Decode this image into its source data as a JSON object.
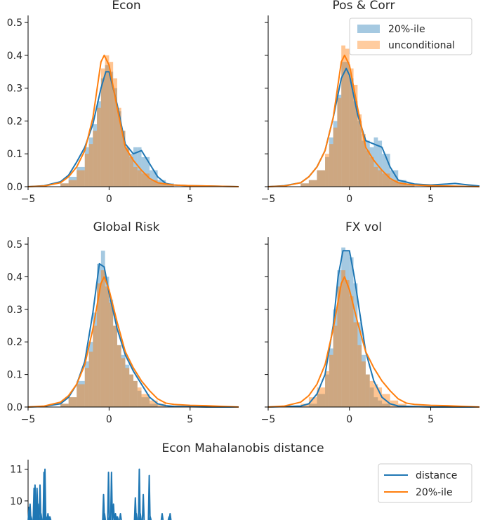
{
  "chart_data": [
    {
      "type": "histogram",
      "title": "Econ",
      "xlim": [
        -5,
        8
      ],
      "ylim": [
        0,
        0.5
      ],
      "xticks": [
        -5,
        0,
        5
      ],
      "yticks": [
        "0.0",
        "0.1",
        "0.2",
        "0.3",
        "0.4",
        "0.5"
      ],
      "legend": null,
      "series": [
        {
          "name": "20%-ile",
          "color": "#1f77b4",
          "hist": {
            "bin_edges": [
              -3.0,
              -2.5,
              -2.0,
              -1.5,
              -1.25,
              -1.0,
              -0.75,
              -0.5,
              -0.25,
              0,
              0.25,
              0.5,
              0.75,
              1.0,
              1.25,
              1.5,
              1.75,
              2.0,
              2.5,
              3.0,
              3.5,
              4.0
            ],
            "heights": [
              0.01,
              0.03,
              0.06,
              0.12,
              0.15,
              0.19,
              0.26,
              0.33,
              0.37,
              0.35,
              0.3,
              0.23,
              0.17,
              0.12,
              0.1,
              0.12,
              0.12,
              0.09,
              0.05,
              0.02,
              0.01
            ]
          },
          "kde_x": [
            -5,
            -4,
            -3,
            -2.5,
            -2,
            -1.5,
            -1,
            -0.5,
            -0.2,
            0,
            0.5,
            1,
            1.5,
            2,
            2.5,
            3,
            3.5,
            4,
            5,
            6,
            7,
            8
          ],
          "kde_y": [
            0,
            0.003,
            0.015,
            0.035,
            0.075,
            0.12,
            0.19,
            0.3,
            0.35,
            0.35,
            0.25,
            0.13,
            0.1,
            0.11,
            0.07,
            0.03,
            0.01,
            0.005,
            0.003,
            0.002,
            0.001,
            0
          ]
        },
        {
          "name": "unconditional",
          "color": "#ff7f0e",
          "hist": {
            "bin_edges": [
              -3.0,
              -2.5,
              -2.0,
              -1.5,
              -1.25,
              -1.0,
              -0.75,
              -0.5,
              -0.25,
              0,
              0.25,
              0.5,
              0.75,
              1.0,
              1.25,
              1.5,
              1.75,
              2.0,
              2.5,
              3.0,
              3.5,
              4.0
            ],
            "heights": [
              0.01,
              0.02,
              0.05,
              0.1,
              0.13,
              0.17,
              0.24,
              0.36,
              0.4,
              0.38,
              0.33,
              0.24,
              0.17,
              0.12,
              0.09,
              0.06,
              0.05,
              0.04,
              0.02,
              0.01,
              0.005
            ]
          },
          "kde_x": [
            -5,
            -4,
            -3,
            -2.5,
            -2,
            -1.5,
            -1,
            -0.5,
            -0.3,
            0,
            0.5,
            1,
            1.5,
            2,
            2.5,
            3,
            3.5,
            4,
            5,
            6,
            7,
            8
          ],
          "kde_y": [
            0,
            0.002,
            0.012,
            0.03,
            0.06,
            0.11,
            0.21,
            0.38,
            0.4,
            0.37,
            0.24,
            0.12,
            0.08,
            0.05,
            0.025,
            0.012,
            0.008,
            0.005,
            0.003,
            0.002,
            0.001,
            0
          ]
        }
      ]
    },
    {
      "type": "histogram",
      "title": "Pos & Corr",
      "xlim": [
        -5,
        8
      ],
      "ylim": [
        0,
        0.5
      ],
      "xticks": [
        -5,
        0,
        5
      ],
      "legend": {
        "placement": "top-right",
        "entries": [
          "20%-ile",
          "unconditional"
        ]
      },
      "series": [
        {
          "name": "20%-ile",
          "color": "#1f77b4",
          "hist": {
            "bin_edges": [
              -3.0,
              -2.5,
              -2.0,
              -1.5,
              -1.25,
              -1.0,
              -0.75,
              -0.5,
              -0.25,
              0,
              0.25,
              0.5,
              0.75,
              1.0,
              1.25,
              1.5,
              1.75,
              2.0,
              2.5,
              3.0,
              3.5,
              4.0
            ],
            "heights": [
              0.01,
              0.02,
              0.05,
              0.09,
              0.15,
              0.2,
              0.28,
              0.38,
              0.38,
              0.33,
              0.26,
              0.2,
              0.14,
              0.14,
              0.12,
              0.15,
              0.14,
              0.1,
              0.05,
              0.02,
              0.01
            ]
          },
          "kde_x": [
            -5,
            -4,
            -3,
            -2.5,
            -2,
            -1.5,
            -1,
            -0.5,
            -0.2,
            0,
            0.5,
            1,
            1.5,
            2,
            2.5,
            3,
            4,
            5,
            6,
            6.5,
            7,
            8
          ],
          "kde_y": [
            0,
            0.003,
            0.012,
            0.03,
            0.06,
            0.11,
            0.21,
            0.33,
            0.36,
            0.34,
            0.22,
            0.14,
            0.13,
            0.12,
            0.06,
            0.02,
            0.008,
            0.005,
            0.008,
            0.01,
            0.007,
            0.002
          ]
        },
        {
          "name": "unconditional",
          "color": "#ff7f0e",
          "hist": {
            "bin_edges": [
              -3.0,
              -2.5,
              -2.0,
              -1.5,
              -1.25,
              -1.0,
              -0.75,
              -0.5,
              -0.25,
              0,
              0.25,
              0.5,
              0.75,
              1.0,
              1.25,
              1.5,
              1.75,
              2.0,
              2.5,
              3.0,
              3.5,
              4.0
            ],
            "heights": [
              0.01,
              0.02,
              0.05,
              0.1,
              0.13,
              0.18,
              0.27,
              0.43,
              0.42,
              0.36,
              0.31,
              0.22,
              0.16,
              0.11,
              0.09,
              0.06,
              0.05,
              0.04,
              0.02,
              0.01,
              0.005
            ]
          },
          "kde_x": [
            -5,
            -4,
            -3,
            -2.5,
            -2,
            -1.5,
            -1,
            -0.5,
            -0.3,
            0,
            0.5,
            1,
            1.5,
            2,
            2.5,
            3,
            3.5,
            4,
            5,
            6,
            7,
            8
          ],
          "kde_y": [
            0,
            0.002,
            0.012,
            0.03,
            0.06,
            0.11,
            0.21,
            0.38,
            0.4,
            0.37,
            0.24,
            0.12,
            0.08,
            0.05,
            0.025,
            0.012,
            0.008,
            0.005,
            0.003,
            0.002,
            0.001,
            0
          ]
        }
      ]
    },
    {
      "type": "histogram",
      "title": "Global Risk",
      "xlim": [
        -5,
        8
      ],
      "ylim": [
        0,
        0.5
      ],
      "xticks": [
        -5,
        0,
        5
      ],
      "yticks": [
        "0.0",
        "0.1",
        "0.2",
        "0.3",
        "0.4",
        "0.5"
      ],
      "legend": null,
      "series": [
        {
          "name": "20%-ile",
          "color": "#1f77b4",
          "hist": {
            "bin_edges": [
              -3.0,
              -2.5,
              -2.0,
              -1.5,
              -1.25,
              -1.0,
              -0.75,
              -0.5,
              -0.25,
              0,
              0.25,
              0.5,
              0.75,
              1.0,
              1.25,
              1.5,
              1.75,
              2.0,
              2.5,
              3.0
            ],
            "heights": [
              0.01,
              0.03,
              0.08,
              0.14,
              0.2,
              0.29,
              0.44,
              0.48,
              0.4,
              0.33,
              0.25,
              0.19,
              0.16,
              0.13,
              0.1,
              0.08,
              0.05,
              0.03,
              0.01
            ]
          },
          "kde_x": [
            -5,
            -4,
            -3,
            -2.5,
            -2,
            -1.5,
            -1,
            -0.6,
            -0.3,
            0,
            0.5,
            1,
            1.5,
            2,
            2.5,
            3,
            3.5,
            4,
            5,
            6,
            7,
            8
          ],
          "kde_y": [
            0,
            0.002,
            0.01,
            0.03,
            0.07,
            0.14,
            0.29,
            0.44,
            0.43,
            0.35,
            0.24,
            0.16,
            0.11,
            0.07,
            0.03,
            0.01,
            0.004,
            0.002,
            0.001,
            0,
            0,
            0
          ]
        },
        {
          "name": "unconditional",
          "color": "#ff7f0e",
          "hist": {
            "bin_edges": [
              -3.0,
              -2.5,
              -2.0,
              -1.5,
              -1.25,
              -1.0,
              -0.75,
              -0.5,
              -0.25,
              0,
              0.25,
              0.5,
              0.75,
              1.0,
              1.25,
              1.5,
              1.75,
              2.0,
              2.5,
              3.0,
              3.5
            ],
            "heights": [
              0.01,
              0.03,
              0.07,
              0.12,
              0.17,
              0.25,
              0.38,
              0.42,
              0.37,
              0.32,
              0.25,
              0.19,
              0.15,
              0.12,
              0.1,
              0.08,
              0.06,
              0.04,
              0.02,
              0.01
            ]
          },
          "kde_x": [
            -5,
            -4,
            -3,
            -2.5,
            -2,
            -1.5,
            -1,
            -0.5,
            -0.3,
            0,
            0.5,
            1,
            1.5,
            2,
            2.5,
            3,
            3.5,
            4,
            5,
            6,
            7,
            8
          ],
          "kde_y": [
            0,
            0.003,
            0.015,
            0.035,
            0.07,
            0.13,
            0.24,
            0.38,
            0.4,
            0.36,
            0.26,
            0.17,
            0.12,
            0.08,
            0.05,
            0.025,
            0.012,
            0.008,
            0.005,
            0.004,
            0.002,
            0
          ]
        }
      ]
    },
    {
      "type": "histogram",
      "title": "FX vol",
      "xlim": [
        -5,
        8
      ],
      "ylim": [
        0,
        0.5
      ],
      "xticks": [
        -5,
        0,
        5
      ],
      "legend": null,
      "series": [
        {
          "name": "20%-ile",
          "color": "#1f77b4",
          "hist": {
            "bin_edges": [
              -2.5,
              -2.0,
              -1.5,
              -1.25,
              -1.0,
              -0.75,
              -0.5,
              -0.25,
              0,
              0.25,
              0.5,
              0.75,
              1.0,
              1.25,
              1.5,
              1.75,
              2.0,
              2.5
            ],
            "heights": [
              0.01,
              0.04,
              0.1,
              0.18,
              0.3,
              0.42,
              0.49,
              0.48,
              0.46,
              0.38,
              0.26,
              0.16,
              0.1,
              0.06,
              0.03,
              0.02,
              0.01
            ]
          },
          "kde_x": [
            -5,
            -3,
            -2.5,
            -2,
            -1.5,
            -1,
            -0.7,
            -0.4,
            0,
            0.3,
            0.6,
            1,
            1.5,
            2,
            2.5,
            3,
            5,
            8
          ],
          "kde_y": [
            0,
            0.003,
            0.01,
            0.04,
            0.1,
            0.25,
            0.4,
            0.48,
            0.48,
            0.4,
            0.3,
            0.17,
            0.08,
            0.03,
            0.01,
            0.003,
            0,
            0
          ]
        },
        {
          "name": "unconditional",
          "color": "#ff7f0e",
          "hist": {
            "bin_edges": [
              -3.0,
              -2.5,
              -2.0,
              -1.5,
              -1.25,
              -1.0,
              -0.75,
              -0.5,
              -0.25,
              0,
              0.25,
              0.5,
              0.75,
              1.0,
              1.25,
              1.5,
              1.75,
              2.0,
              2.5,
              3.0,
              3.5
            ],
            "heights": [
              0.01,
              0.03,
              0.06,
              0.11,
              0.16,
              0.25,
              0.37,
              0.42,
              0.39,
              0.34,
              0.26,
              0.19,
              0.14,
              0.1,
              0.08,
              0.07,
              0.06,
              0.04,
              0.02,
              0.01
            ]
          },
          "kde_x": [
            -5,
            -4,
            -3,
            -2.5,
            -2,
            -1.5,
            -1,
            -0.5,
            -0.3,
            0,
            0.5,
            1,
            1.5,
            2,
            2.5,
            3,
            3.5,
            4,
            5,
            6,
            7,
            8
          ],
          "kde_y": [
            0,
            0.003,
            0.015,
            0.035,
            0.07,
            0.13,
            0.24,
            0.38,
            0.4,
            0.36,
            0.26,
            0.17,
            0.12,
            0.08,
            0.05,
            0.025,
            0.012,
            0.008,
            0.005,
            0.004,
            0.002,
            0
          ]
        }
      ]
    },
    {
      "type": "line",
      "title": "Econ Mahalanobis distance",
      "yticks": [
        "11",
        "10"
      ],
      "ylim_visible": [
        9.4,
        11.3
      ],
      "x_range": [
        0,
        100
      ],
      "legend": {
        "placement": "top-right",
        "entries": [
          "distance",
          "20%-ile"
        ]
      },
      "series": [
        {
          "name": "distance",
          "color": "#1f77b4",
          "spikes": [
            {
              "x": 1,
              "y": 9.8
            },
            {
              "x": 2,
              "y": 9.9
            },
            {
              "x": 3,
              "y": 9.5
            },
            {
              "x": 6,
              "y": 10.4
            },
            {
              "x": 7,
              "y": 10.5
            },
            {
              "x": 8,
              "y": 9.7
            },
            {
              "x": 9,
              "y": 10.4
            },
            {
              "x": 10,
              "y": 9.9
            },
            {
              "x": 12,
              "y": 10.5
            },
            {
              "x": 13,
              "y": 9.6
            },
            {
              "x": 16,
              "y": 10.9
            },
            {
              "x": 17,
              "y": 11.0
            },
            {
              "x": 18,
              "y": 9.5
            },
            {
              "x": 20,
              "y": 9.6
            },
            {
              "x": 21,
              "y": 9.5
            },
            {
              "x": 22,
              "y": 9.5
            },
            {
              "x": 76,
              "y": 10.2
            },
            {
              "x": 77,
              "y": 9.6
            },
            {
              "x": 81,
              "y": 10.9
            },
            {
              "x": 82,
              "y": 9.5
            },
            {
              "x": 84,
              "y": 10.9
            },
            {
              "x": 86,
              "y": 9.9
            },
            {
              "x": 88,
              "y": 9.6
            },
            {
              "x": 89,
              "y": 9.5
            },
            {
              "x": 90,
              "y": 9.5
            },
            {
              "x": 93,
              "y": 9.6
            },
            {
              "x": 108,
              "y": 10.1
            },
            {
              "x": 109,
              "y": 9.6
            },
            {
              "x": 112,
              "y": 11.0
            },
            {
              "x": 113,
              "y": 9.6
            },
            {
              "x": 116,
              "y": 10.2
            },
            {
              "x": 122,
              "y": 10.8
            },
            {
              "x": 123,
              "y": 9.5
            },
            {
              "x": 135,
              "y": 9.6
            },
            {
              "x": 142,
              "y": 9.5
            },
            {
              "x": 143,
              "y": 9.6
            }
          ]
        },
        {
          "name": "20%-ile",
          "color": "#ff7f0e"
        }
      ]
    }
  ]
}
